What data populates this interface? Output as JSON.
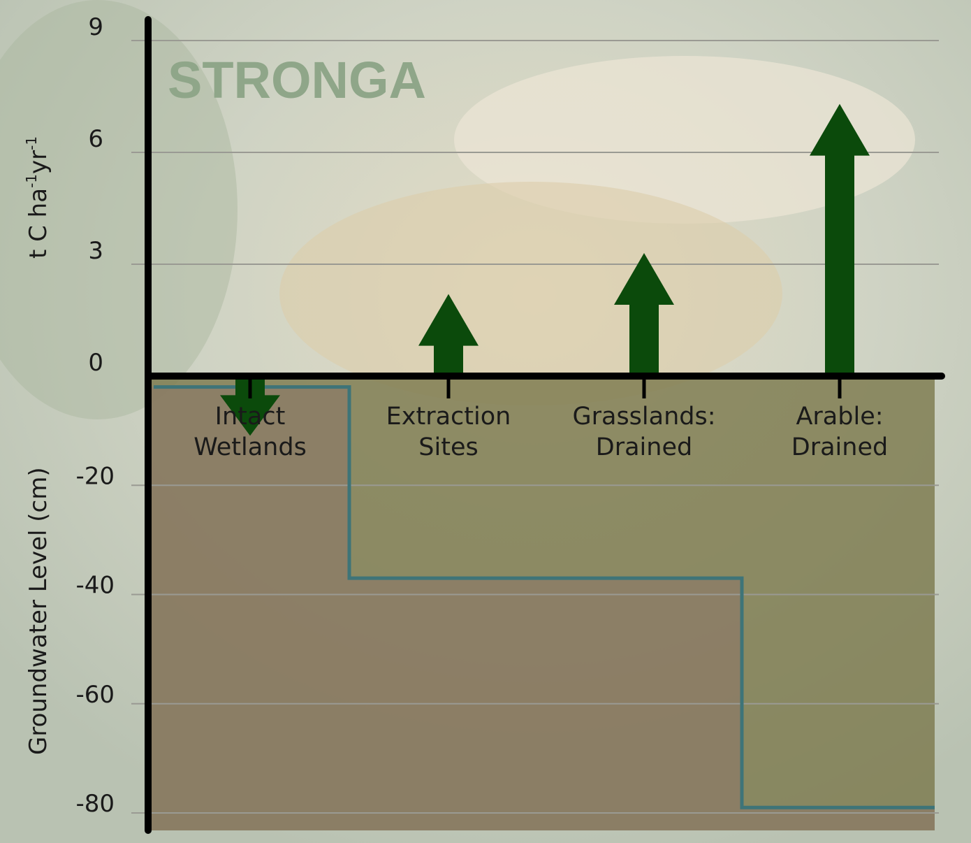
{
  "brand": {
    "name": "STRONGA",
    "color": "#8fa689"
  },
  "colors": {
    "arrow": "#0b4a0b",
    "groundwater_line": "#3e7478",
    "soil_fill_left": "#8c7c66",
    "soil_fill_right": "#7c7a4e",
    "grid": "#9a9a93",
    "axis": "#000000"
  },
  "chart_data": {
    "type": "combined arrow-flux and step-line",
    "categories": [
      "Intact\nWetlands",
      "Extraction\nSites",
      "Grasslands:\nDrained",
      "Arable:\nDrained"
    ],
    "upper_axis": {
      "label_main": "t C ha",
      "label_sup1": "-1",
      "label_mid": "yr",
      "label_sup2": "-1",
      "ticks": [
        "9",
        "6",
        "3",
        "0"
      ],
      "ylim": [
        0,
        9
      ],
      "series": [
        {
          "category": "Intact\nWetlands",
          "value": -1.6
        },
        {
          "category": "Extraction\nSites",
          "value": 2.2
        },
        {
          "category": "Grasslands:\nDrained",
          "value": 3.3
        },
        {
          "category": "Arable:\nDrained",
          "value": 7.3
        }
      ]
    },
    "lower_axis": {
      "label": "Groundwater Level (cm)",
      "ticks": [
        "-20",
        "-40",
        "-60",
        "-80"
      ],
      "ylim": [
        -83,
        0
      ],
      "series": [
        {
          "category": "Intact\nWetlands",
          "value": -2
        },
        {
          "category": "Extraction\nSites",
          "value": -37
        },
        {
          "category": "Grasslands:\nDrained",
          "value": -37
        },
        {
          "category": "Arable:\nDrained",
          "value": -79
        }
      ]
    },
    "grid": true
  }
}
